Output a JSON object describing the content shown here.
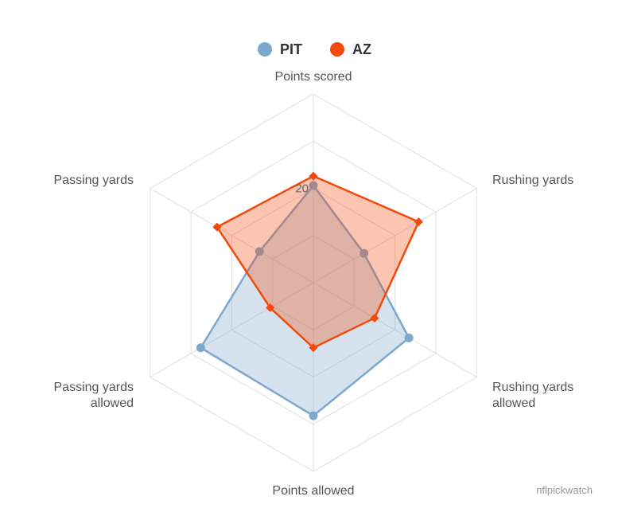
{
  "chart_data": {
    "type": "radar",
    "axes": [
      "Points scored",
      "Rushing yards",
      "Rushing yards allowed",
      "Points allowed",
      "Passing yards allowed",
      "Passing yards"
    ],
    "axis_labels": [
      [
        "Points scored"
      ],
      [
        "Rushing yards"
      ],
      [
        "Rushing yards",
        "allowed"
      ],
      [
        "Points allowed"
      ],
      [
        "Passing yards",
        "allowed"
      ],
      [
        "Passing yards"
      ]
    ],
    "max": 40,
    "tick_labels": [
      "20"
    ],
    "series": [
      {
        "name": "PIT",
        "values": [
          20.6,
          12.4,
          23.4,
          28.2,
          27.6,
          13.2
        ],
        "color": "#7ea7cd",
        "marker": "circle"
      },
      {
        "name": "AZ",
        "values": [
          22.6,
          25.8,
          15.0,
          13.8,
          10.6,
          23.6
        ],
        "color": "#f24a0c",
        "marker": "diamond"
      }
    ],
    "legend_position": "top-center",
    "grid": true
  },
  "credit": "nflpickwatch"
}
